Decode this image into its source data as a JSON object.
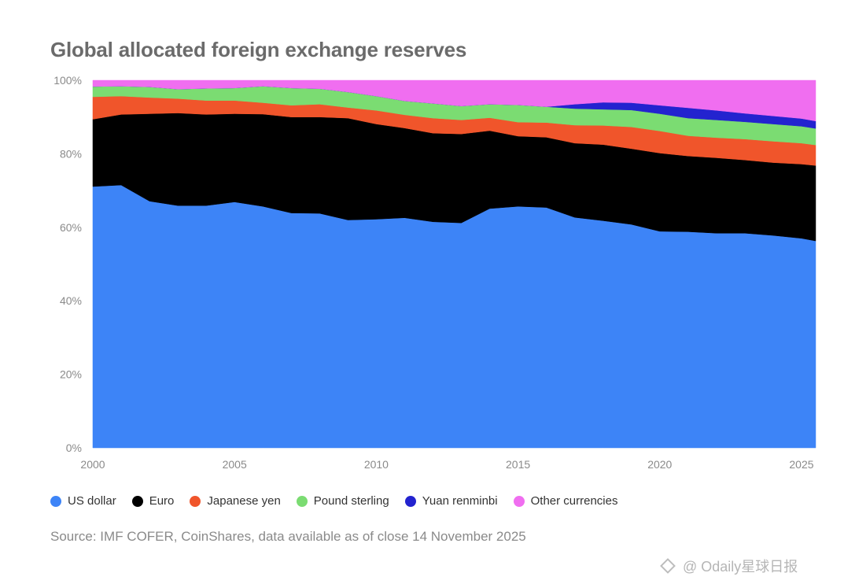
{
  "title": "Global allocated foreign exchange reserves",
  "source": "Source: IMF COFER, CoinShares, data available as of close 14 November 2025",
  "watermark": "@ Odaily星球日报",
  "chart_data": {
    "type": "area",
    "stacked": true,
    "title": "Global allocated foreign exchange reserves",
    "xlabel": "",
    "ylabel": "",
    "xlim": [
      2000,
      2025.5
    ],
    "ylim": [
      0,
      100
    ],
    "x_ticks": [
      2000,
      2005,
      2010,
      2015,
      2020,
      2025
    ],
    "y_ticks": [
      0,
      20,
      40,
      60,
      80,
      100
    ],
    "y_tick_labels": [
      "0%",
      "20%",
      "40%",
      "60%",
      "80%",
      "100%"
    ],
    "grid": false,
    "legend_position": "bottom",
    "x": [
      2000,
      2001,
      2002,
      2003,
      2004,
      2005,
      2006,
      2007,
      2008,
      2009,
      2010,
      2011,
      2012,
      2013,
      2014,
      2015,
      2016,
      2017,
      2018,
      2019,
      2020,
      2021,
      2022,
      2023,
      2024,
      2025,
      2025.5
    ],
    "series": [
      {
        "name": "US dollar",
        "color": "#3d84f7",
        "values": [
          71.1,
          71.5,
          67.1,
          65.9,
          65.9,
          66.9,
          65.7,
          63.9,
          63.8,
          62.0,
          62.2,
          62.6,
          61.5,
          61.2,
          65.1,
          65.7,
          65.4,
          62.7,
          61.8,
          60.8,
          58.9,
          58.8,
          58.4,
          58.4,
          57.8,
          57.0,
          56.3
        ]
      },
      {
        "name": "Euro",
        "color": "#000000",
        "values": [
          18.3,
          19.2,
          23.8,
          25.2,
          24.8,
          24.0,
          25.1,
          26.1,
          26.2,
          27.7,
          25.9,
          24.4,
          24.1,
          24.2,
          21.2,
          19.1,
          19.1,
          20.2,
          20.7,
          20.6,
          21.3,
          20.6,
          20.5,
          19.9,
          19.8,
          20.2,
          20.5
        ]
      },
      {
        "name": "Japanese yen",
        "color": "#f0552b",
        "values": [
          6.1,
          5.0,
          4.4,
          3.9,
          3.8,
          3.6,
          3.1,
          3.2,
          3.5,
          2.9,
          3.7,
          3.6,
          4.1,
          3.8,
          3.5,
          3.8,
          4.0,
          4.9,
          5.2,
          5.9,
          6.0,
          5.5,
          5.5,
          5.7,
          5.8,
          5.7,
          5.6
        ]
      },
      {
        "name": "Pound sterling",
        "color": "#7bdc72",
        "values": [
          2.8,
          2.7,
          2.9,
          2.6,
          3.3,
          3.4,
          4.5,
          4.7,
          4.2,
          4.2,
          3.9,
          3.8,
          4.0,
          3.8,
          3.7,
          4.7,
          4.3,
          4.5,
          4.4,
          4.6,
          4.7,
          4.8,
          4.8,
          4.7,
          4.7,
          4.6,
          4.5
        ]
      },
      {
        "name": "Yuan renminbi",
        "color": "#2323cf",
        "values": [
          0,
          0,
          0,
          0,
          0,
          0,
          0,
          0,
          0,
          0,
          0,
          0,
          0,
          0,
          0,
          0,
          0,
          1.2,
          1.9,
          2.0,
          2.3,
          2.8,
          2.6,
          2.3,
          2.2,
          2.1,
          2.0
        ]
      },
      {
        "name": "Other currencies",
        "color": "#f06ef0",
        "values": [
          1.7,
          1.6,
          1.8,
          2.4,
          2.2,
          2.1,
          1.6,
          2.1,
          2.3,
          3.2,
          4.3,
          5.6,
          6.3,
          7.0,
          6.5,
          6.7,
          7.2,
          6.5,
          6.0,
          6.1,
          6.8,
          7.5,
          8.2,
          9.0,
          9.7,
          10.4,
          11.1
        ]
      }
    ]
  }
}
